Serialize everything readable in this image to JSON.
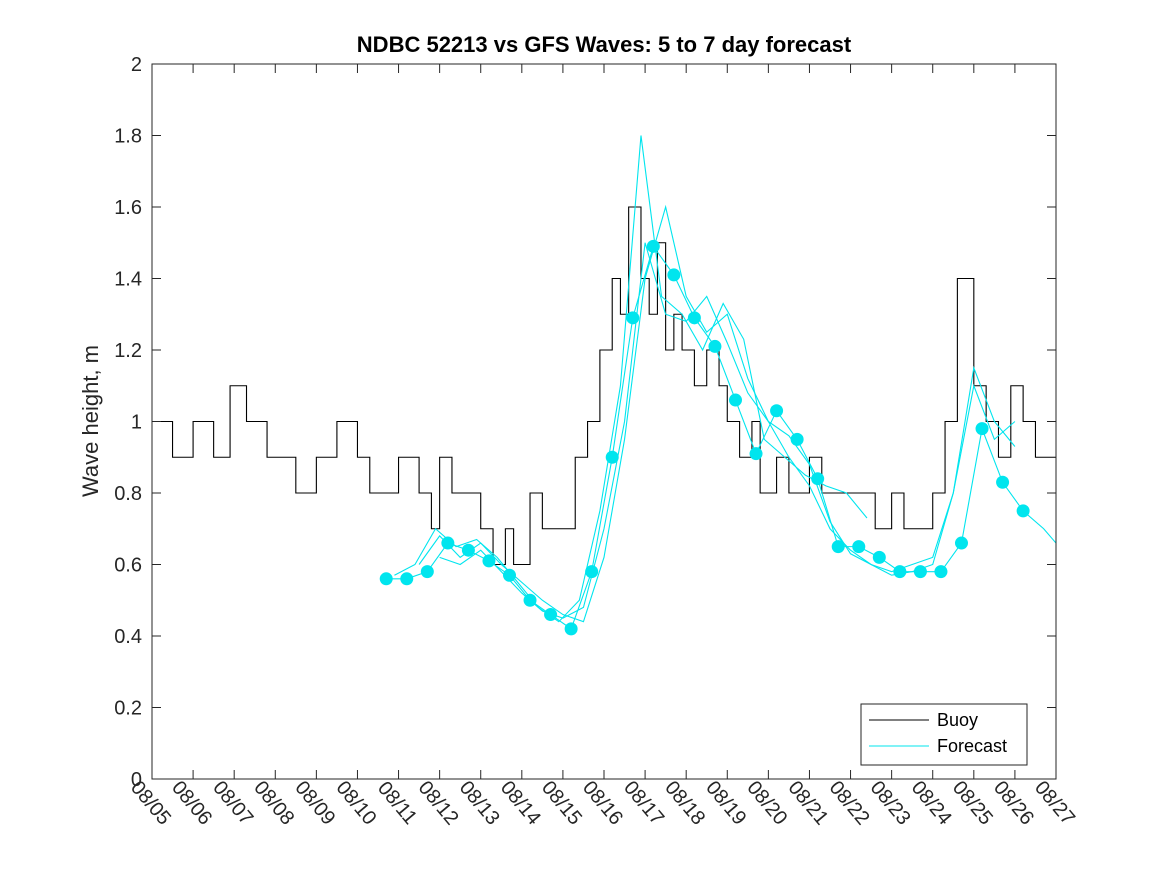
{
  "chart_data": {
    "type": "line",
    "title": "NDBC 52213 vs GFS Waves: 5 to 7 day forecast",
    "xlabel": "",
    "ylabel": "Wave height, m",
    "xlim": [
      0,
      22
    ],
    "ylim": [
      0,
      2
    ],
    "grid": false,
    "legend_position": "bottom-right",
    "x_tick_labels": [
      "08/05",
      "08/06",
      "08/07",
      "08/08",
      "08/09",
      "08/10",
      "08/11",
      "08/12",
      "08/13",
      "08/14",
      "08/15",
      "08/16",
      "08/17",
      "08/18",
      "08/19",
      "08/20",
      "08/21",
      "08/22",
      "08/23",
      "08/24",
      "08/25",
      "08/26",
      "08/27"
    ],
    "y_ticks": [
      0,
      0.2,
      0.4,
      0.6,
      0.8,
      1,
      1.2,
      1.4,
      1.6,
      1.8,
      2
    ],
    "y_tick_labels": [
      "0",
      "0.2",
      "0.4",
      "0.6",
      "0.8",
      "1",
      "1.2",
      "1.4",
      "1.6",
      "1.8",
      "2"
    ],
    "colors": {
      "buoy": "#000000",
      "forecast": "#00e5ee",
      "markers": "#00e5ee"
    },
    "series": [
      {
        "name": "Buoy",
        "type": "step",
        "x": [
          0,
          0.5,
          1,
          1.5,
          1.9,
          2.3,
          2.8,
          3,
          3.5,
          4,
          4.5,
          5,
          5.3,
          5.8,
          6,
          6.5,
          6.8,
          7,
          7.3,
          7.6,
          8,
          8.3,
          8.6,
          8.8,
          9,
          9.2,
          9.5,
          10,
          10.3,
          10.6,
          10.9,
          11.2,
          11.4,
          11.6,
          11.9,
          12.1,
          12.3,
          12.5,
          12.7,
          12.9,
          13.2,
          13.5,
          13.8,
          14,
          14.3,
          14.6,
          14.8,
          15.2,
          15.5,
          15.8,
          16,
          16.3,
          16.6,
          17,
          17.3,
          17.6,
          18,
          18.3,
          18.6,
          19,
          19.3,
          19.6,
          20,
          20.3,
          20.6,
          20.9,
          21.2,
          21.5,
          22
        ],
        "y": [
          1,
          0.9,
          1,
          0.9,
          1.1,
          1,
          0.9,
          0.9,
          0.8,
          0.9,
          1,
          0.9,
          0.8,
          0.8,
          0.9,
          0.8,
          0.7,
          0.9,
          0.8,
          0.8,
          0.7,
          0.6,
          0.7,
          0.6,
          0.6,
          0.8,
          0.7,
          0.7,
          0.9,
          1.0,
          1.2,
          1.4,
          1.3,
          1.6,
          1.4,
          1.3,
          1.5,
          1.2,
          1.3,
          1.2,
          1.1,
          1.2,
          1.1,
          1.0,
          0.9,
          1.0,
          0.8,
          0.9,
          0.8,
          0.8,
          0.9,
          0.8,
          0.8,
          0.8,
          0.8,
          0.7,
          0.8,
          0.7,
          0.7,
          0.8,
          1.0,
          1.4,
          1.1,
          1.0,
          0.9,
          1.1,
          1.0,
          0.9,
          0.9
        ]
      },
      {
        "name": "Forecast",
        "type": "line",
        "x": [
          5.7,
          6.2,
          6.7,
          7.2,
          7.7,
          8.2,
          8.7,
          9.2,
          9.7,
          10.2,
          10.7,
          11.2,
          11.7,
          12.2,
          12.7,
          13.2,
          13.7,
          14.2,
          14.7,
          15.2,
          15.7,
          16.2,
          16.7,
          17.2,
          17.7,
          18.2,
          18.7,
          19.2,
          19.7,
          20.2,
          20.7,
          21.2,
          21.7,
          22
        ],
        "values": [
          0.56,
          0.56,
          0.58,
          0.66,
          0.64,
          0.61,
          0.57,
          0.5,
          0.46,
          0.42,
          0.58,
          0.9,
          1.29,
          1.49,
          1.41,
          1.29,
          1.21,
          1.06,
          0.91,
          1.03,
          0.95,
          0.84,
          0.65,
          0.65,
          0.62,
          0.58,
          0.58,
          0.58,
          0.66,
          0.98,
          0.83,
          0.75,
          0.7,
          0.66
        ]
      },
      {
        "name": "Forecast",
        "type": "line",
        "x": [
          5.9,
          6.4,
          6.9,
          7.4,
          7.9,
          8.4,
          8.9,
          9.4,
          9.9,
          10.4,
          10.9,
          11.4,
          11.9,
          12.4,
          12.9,
          13.4,
          13.9,
          14.4,
          14.9,
          15.4,
          15.9,
          16.4,
          16.9,
          17.4
        ],
        "values": [
          0.57,
          0.6,
          0.7,
          0.65,
          0.67,
          0.62,
          0.55,
          0.48,
          0.44,
          0.5,
          0.75,
          1.1,
          1.8,
          1.35,
          1.3,
          1.2,
          1.33,
          1.23,
          0.95,
          0.9,
          0.85,
          0.82,
          0.8,
          0.73
        ]
      },
      {
        "name": "Forecast",
        "type": "line",
        "x": [
          6.5,
          7,
          7.5,
          8,
          8.5,
          9,
          9.5,
          10,
          10.5,
          11,
          11.5,
          12,
          12.5,
          13,
          13.5,
          14,
          14.5,
          15,
          15.5,
          16,
          16.5,
          17,
          17.5,
          18,
          18.5,
          19,
          19.5,
          20,
          20.5,
          21
        ],
        "values": [
          0.6,
          0.68,
          0.62,
          0.66,
          0.6,
          0.55,
          0.5,
          0.46,
          0.44,
          0.62,
          0.95,
          1.4,
          1.6,
          1.35,
          1.25,
          1.3,
          1.12,
          1.0,
          0.96,
          0.88,
          0.72,
          0.63,
          0.6,
          0.57,
          0.58,
          0.6,
          0.8,
          1.15,
          1.0,
          0.93
        ]
      },
      {
        "name": "Forecast",
        "type": "line",
        "x": [
          7,
          7.5,
          8,
          8.5,
          9,
          9.5,
          10,
          10.5,
          11,
          11.5,
          12,
          12.5,
          13,
          13.5,
          14,
          14.5,
          15,
          15.5,
          16,
          16.5,
          17,
          17.5,
          18,
          18.5,
          19,
          19.5,
          20,
          20.5,
          21
        ],
        "values": [
          0.62,
          0.6,
          0.64,
          0.58,
          0.52,
          0.47,
          0.45,
          0.48,
          0.7,
          1.0,
          1.5,
          1.3,
          1.28,
          1.35,
          1.22,
          1.08,
          1.0,
          0.9,
          0.82,
          0.7,
          0.64,
          0.6,
          0.58,
          0.6,
          0.62,
          0.8,
          1.1,
          0.95,
          1.0
        ]
      }
    ],
    "markers": {
      "x": [
        5.7,
        6.2,
        6.7,
        7.2,
        7.7,
        8.2,
        8.7,
        9.2,
        9.7,
        10.2,
        10.7,
        11.2,
        11.7,
        12.2,
        12.7,
        13.2,
        13.7,
        14.2,
        14.7,
        15.2,
        15.7,
        16.2,
        16.7,
        17.2,
        17.7,
        18.2,
        18.7,
        19.2,
        19.7,
        20.2,
        20.7,
        21.2
      ],
      "values": [
        0.56,
        0.56,
        0.58,
        0.66,
        0.64,
        0.61,
        0.57,
        0.5,
        0.46,
        0.42,
        0.58,
        0.9,
        1.29,
        1.49,
        1.41,
        1.29,
        1.21,
        1.06,
        0.91,
        1.03,
        0.95,
        0.84,
        0.65,
        0.65,
        0.62,
        0.58,
        0.58,
        0.58,
        0.66,
        0.98,
        0.83,
        0.75
      ]
    },
    "legend": [
      "Buoy",
      "Forecast"
    ]
  }
}
